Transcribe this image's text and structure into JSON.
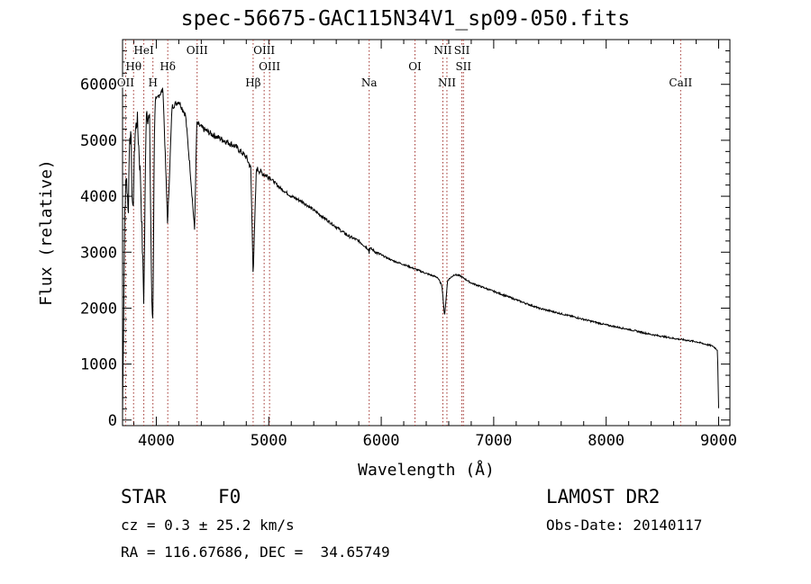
{
  "chart_data": {
    "type": "line",
    "title": "spec-56675-GAC115N34V1_sp09-050.fits",
    "xlabel": "Wavelength (Å)",
    "ylabel": "Flux (relative)",
    "xlim": [
      3700,
      9100
    ],
    "ylim": [
      -100,
      6800
    ],
    "xticks": [
      4000,
      5000,
      6000,
      7000,
      8000,
      9000
    ],
    "xtick_labels": [
      "4000",
      "5000",
      "6000",
      "7000",
      "8000",
      "9000"
    ],
    "yticks": [
      0,
      1000,
      2000,
      3000,
      4000,
      5000,
      6000
    ],
    "ytick_labels": [
      "0",
      "1000",
      "2000",
      "3000",
      "4000",
      "5000",
      "6000"
    ],
    "series": [
      {
        "name": "flux",
        "x": [
          3700,
          3720,
          3735,
          3750,
          3760,
          3775,
          3790,
          3810,
          3830,
          3860,
          3889,
          3910,
          3940,
          3960,
          3970,
          3985,
          4000,
          4020,
          4060,
          4101,
          4140,
          4200,
          4260,
          4300,
          4340,
          4360,
          4420,
          4500,
          4600,
          4700,
          4800,
          4840,
          4861,
          4890,
          4950,
          5000,
          5100,
          5200,
          5300,
          5400,
          5500,
          5600,
          5700,
          5800,
          5890,
          5893,
          5896,
          5950,
          6000,
          6100,
          6200,
          6300,
          6400,
          6500,
          6540,
          6563,
          6590,
          6650,
          6700,
          6800,
          7000,
          7200,
          7400,
          7600,
          7800,
          8000,
          8200,
          8400,
          8600,
          8800,
          8950,
          8990,
          9000
        ],
        "y": [
          100,
          3800,
          4400,
          3600,
          4900,
          5200,
          3500,
          5100,
          5400,
          4300,
          2100,
          5600,
          5300,
          2000,
          1800,
          5500,
          5700,
          5800,
          5900,
          3500,
          5600,
          5700,
          5450,
          4500,
          3400,
          5300,
          5200,
          5100,
          5000,
          4900,
          4700,
          4500,
          2600,
          4500,
          4400,
          4350,
          4150,
          4000,
          3900,
          3750,
          3600,
          3450,
          3300,
          3200,
          3050,
          2950,
          3080,
          3000,
          2950,
          2850,
          2780,
          2700,
          2620,
          2550,
          2400,
          1850,
          2500,
          2600,
          2580,
          2450,
          2300,
          2150,
          2000,
          1900,
          1800,
          1700,
          1620,
          1530,
          1460,
          1400,
          1320,
          1250,
          200
        ]
      }
    ],
    "lines": [
      {
        "label": "OII",
        "x": 3727
      },
      {
        "label": "Hθ",
        "x": 3798
      },
      {
        "label": "HeI",
        "x": 3889
      },
      {
        "label": "H",
        "x": 3970
      },
      {
        "label": "Hδ",
        "x": 4102
      },
      {
        "label": "OIII",
        "x": 4363
      },
      {
        "label": "Hβ",
        "x": 4861
      },
      {
        "label": "OIII",
        "x": 4959
      },
      {
        "label": "OIII",
        "x": 5007
      },
      {
        "label": "Na",
        "x": 5893
      },
      {
        "label": "OI",
        "x": 6300
      },
      {
        "label": "NII",
        "x": 6548
      },
      {
        "label": "NII",
        "x": 6584
      },
      {
        "label": "SII",
        "x": 6717
      },
      {
        "label": "SII",
        "x": 6731
      },
      {
        "label": "CaII",
        "x": 8662
      }
    ]
  },
  "info": {
    "class": "STAR",
    "subclass": "F0",
    "survey": "LAMOST DR2",
    "cz": "cz = 0.3 ± 25.2 km/s",
    "obs_date": "Obs-Date: 20140117",
    "coords": "RA = 116.67686, DEC =  34.65749"
  },
  "colors": {
    "line": "#000000",
    "marker": "#a0322d"
  }
}
